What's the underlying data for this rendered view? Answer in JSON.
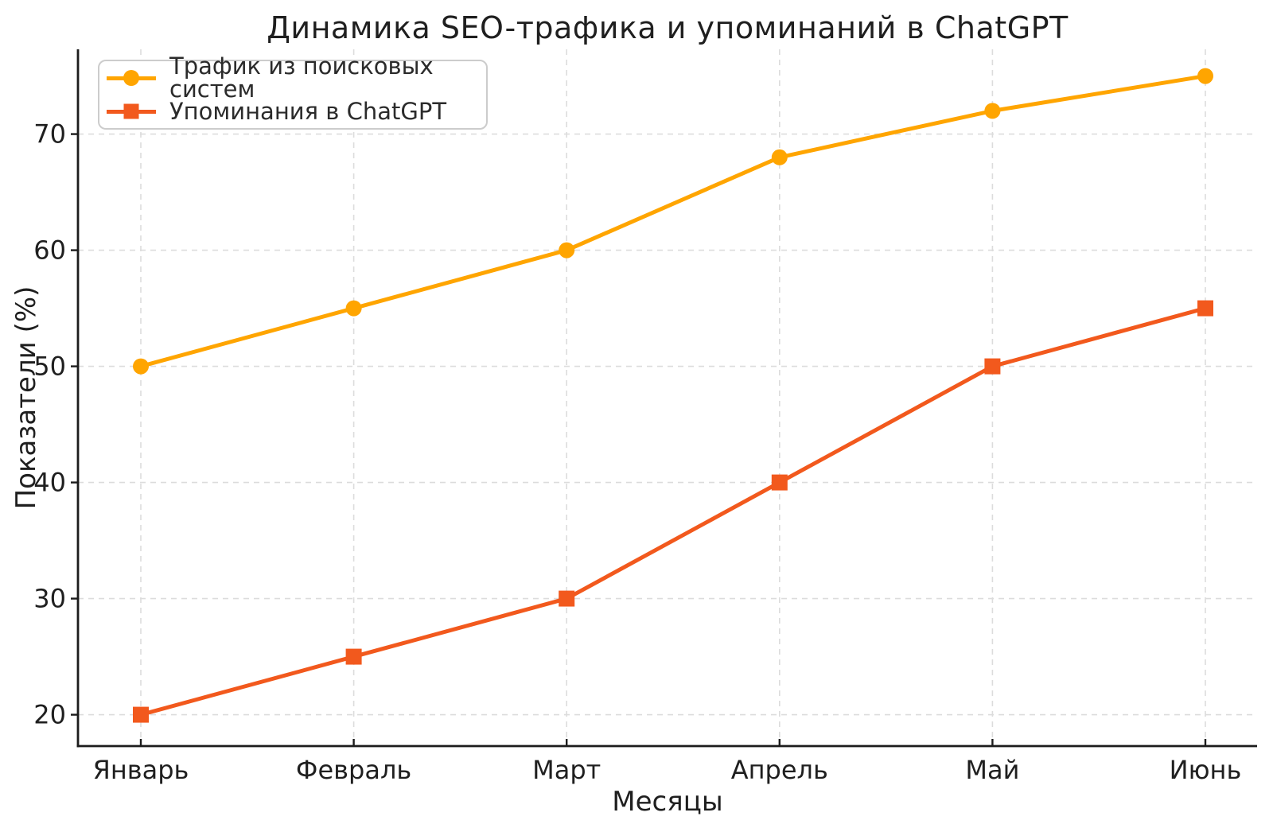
{
  "chart_data": {
    "type": "line",
    "title": "Динамика SEO-трафика и упоминаний в ChatGPT",
    "xlabel": "Месяцы",
    "ylabel": "Показатели (%)",
    "categories": [
      "Январь",
      "Февраль",
      "Март",
      "Апрель",
      "Май",
      "Июнь"
    ],
    "series": [
      {
        "name": "Трафик из поисковых систем",
        "values": [
          50,
          55,
          60,
          68,
          72,
          75
        ],
        "color": "#FFA500",
        "marker": "circle"
      },
      {
        "name": "Упоминания в ChatGPT",
        "values": [
          20,
          25,
          30,
          40,
          50,
          55
        ],
        "color": "#F2591D",
        "marker": "square"
      }
    ],
    "yticks": [
      20,
      30,
      40,
      50,
      60,
      70
    ],
    "ylim": [
      17.3,
      77.3
    ],
    "grid": true,
    "grid_style": "dashed",
    "legend_position": "upper left",
    "style": {
      "background": "#ffffff",
      "grid_color": "#dcdcdc",
      "spine_color": "#1c1c1c",
      "tick_color": "#1c1c1c",
      "text_color": "#1f1f1f",
      "legend_border": "#cccccc"
    }
  }
}
